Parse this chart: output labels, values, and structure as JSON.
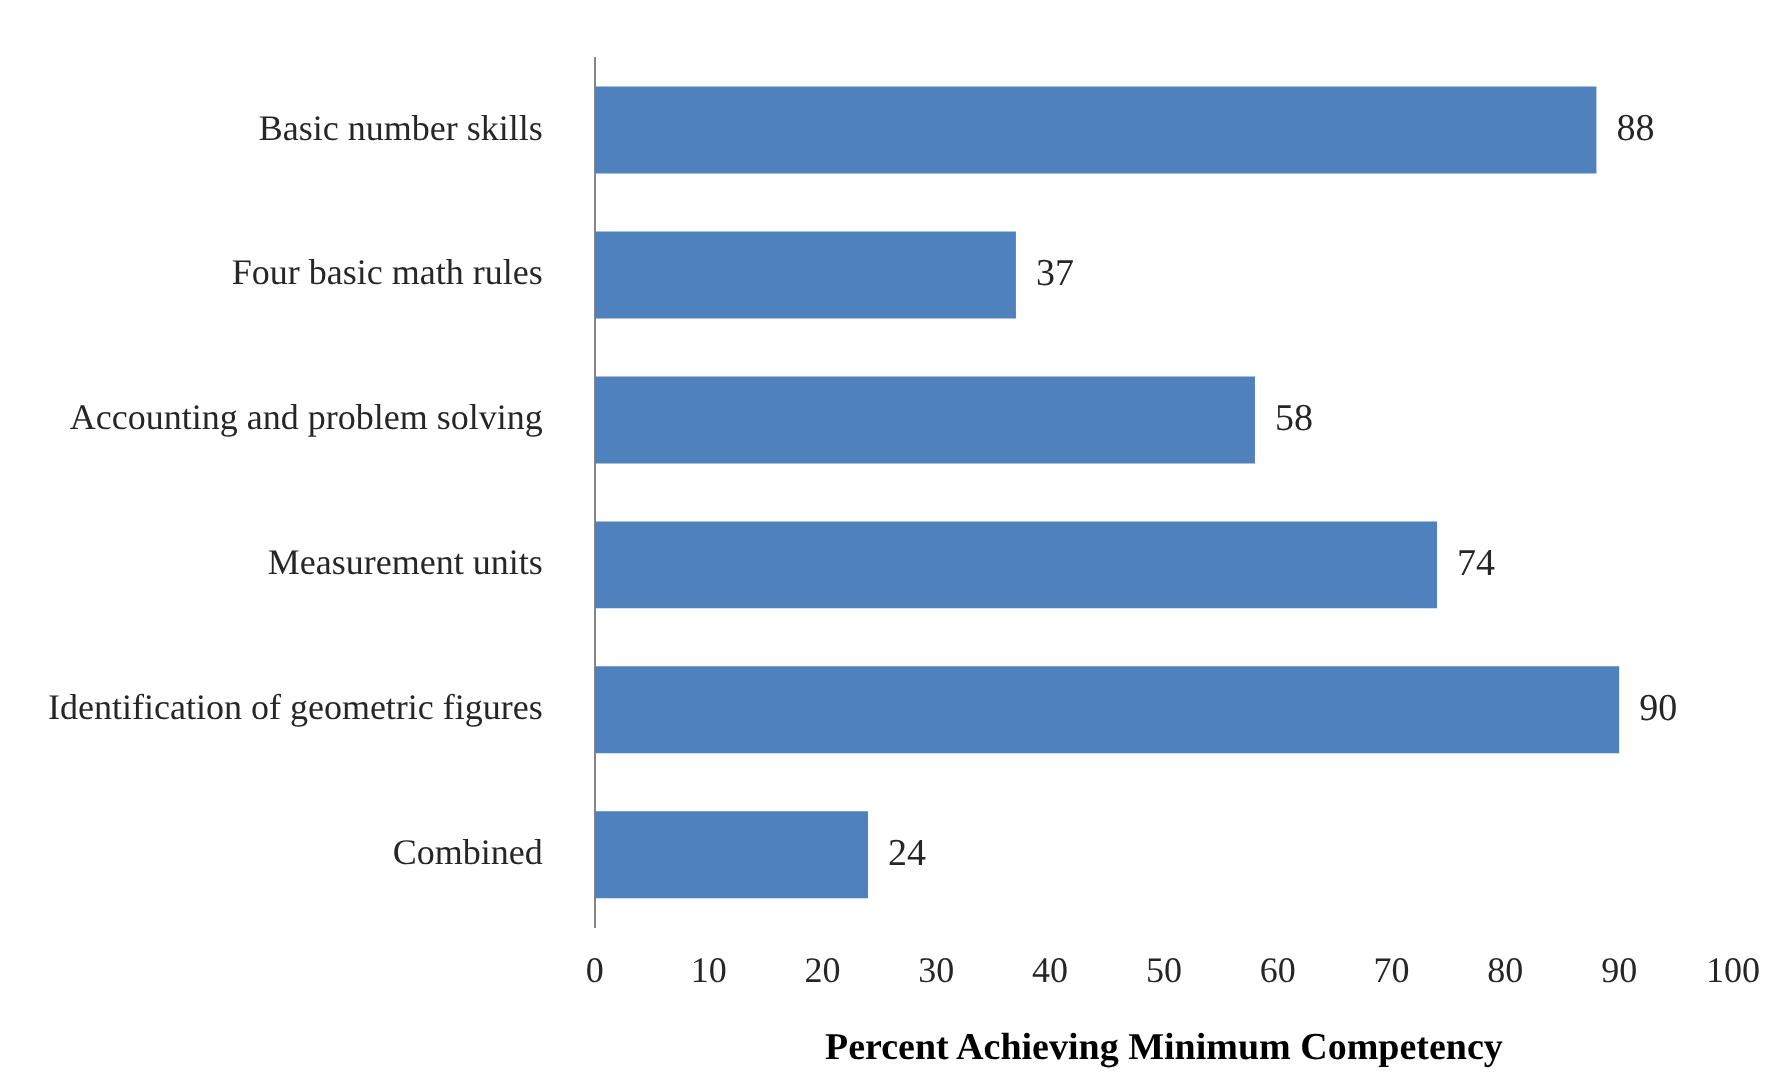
{
  "chart_data": {
    "type": "bar",
    "orientation": "horizontal",
    "xlabel": "Percent Achieving Minimum Competency",
    "categories": [
      "Basic number skills",
      "Four basic math rules",
      "Accounting and problem solving",
      "Measurement units",
      "Identification of geometric figures",
      "Combined"
    ],
    "values": [
      88,
      37,
      58,
      74,
      90,
      24
    ],
    "color": "#4f81bd",
    "xlim": [
      0,
      100
    ],
    "xticks": [
      0,
      10,
      20,
      30,
      40,
      50,
      60,
      70,
      80,
      90,
      100
    ],
    "grid": false,
    "data_labels": true
  }
}
